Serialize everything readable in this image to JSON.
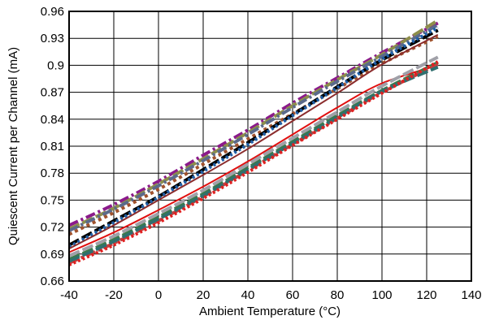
{
  "chart_data": {
    "type": "line",
    "title": "",
    "xlabel": "Ambient Temperature (°C)",
    "ylabel": "Quiescent Current per Channel (mA)",
    "xlim": [
      -40,
      140
    ],
    "ylim": [
      0.66,
      0.96
    ],
    "x_ticks": [
      "-40",
      "-20",
      "0",
      "20",
      "40",
      "60",
      "80",
      "100",
      "120",
      "140"
    ],
    "y_ticks": [
      "0.66",
      "0.69",
      "0.72",
      "0.75",
      "0.78",
      "0.81",
      "0.84",
      "0.87",
      "0.9",
      "0.93",
      "0.96"
    ],
    "grid": true,
    "legend": "none",
    "x": [
      -40,
      -20,
      0,
      20,
      40,
      60,
      80,
      100,
      125
    ],
    "series": [
      {
        "color": "#8b1a8b",
        "dash": "12,4,3,4",
        "values": [
          0.722,
          0.745,
          0.771,
          0.8,
          0.828,
          0.858,
          0.886,
          0.914,
          0.947
        ]
      },
      {
        "color": "#8e8e4a",
        "dash": "14,4",
        "values": [
          0.718,
          0.741,
          0.768,
          0.796,
          0.825,
          0.855,
          0.884,
          0.912,
          0.95
        ]
      },
      {
        "color": "#5a6a8a",
        "dash": "12,4,3,4",
        "values": [
          0.716,
          0.74,
          0.766,
          0.794,
          0.823,
          0.853,
          0.882,
          0.91,
          0.945
        ]
      },
      {
        "color": "#a0522d",
        "dash": "4,4",
        "values": [
          0.712,
          0.736,
          0.762,
          0.79,
          0.818,
          0.846,
          0.874,
          0.902,
          0.932
        ]
      },
      {
        "color": "#000000",
        "dash": "14,4",
        "values": [
          0.7,
          0.727,
          0.754,
          0.784,
          0.814,
          0.845,
          0.876,
          0.906,
          0.939
        ]
      },
      {
        "color": "#1f5fa8",
        "dash": "3,3",
        "values": [
          0.698,
          0.725,
          0.753,
          0.782,
          0.812,
          0.844,
          0.875,
          0.907,
          0.942
        ]
      },
      {
        "color": "#8b2c2c",
        "dash": "",
        "values": [
          0.696,
          0.722,
          0.75,
          0.778,
          0.807,
          0.838,
          0.869,
          0.901,
          0.934
        ]
      },
      {
        "color": "#e01010",
        "dash": "",
        "values": [
          0.692,
          0.714,
          0.739,
          0.765,
          0.793,
          0.823,
          0.853,
          0.88,
          0.9
        ]
      },
      {
        "color": "#3a7a4a",
        "dash": "14,4",
        "values": [
          0.684,
          0.706,
          0.731,
          0.757,
          0.786,
          0.815,
          0.844,
          0.872,
          0.903
        ]
      },
      {
        "color": "#a0a0a8",
        "dash": "14,4",
        "values": [
          0.688,
          0.71,
          0.735,
          0.761,
          0.79,
          0.819,
          0.848,
          0.877,
          0.909
        ]
      },
      {
        "color": "#c04040",
        "dash": "12,4,3,4",
        "values": [
          0.68,
          0.702,
          0.727,
          0.754,
          0.783,
          0.812,
          0.841,
          0.87,
          0.901
        ]
      },
      {
        "color": "#2f6f6f",
        "dash": "14,4",
        "values": [
          0.682,
          0.704,
          0.729,
          0.755,
          0.784,
          0.813,
          0.842,
          0.871,
          0.898
        ]
      },
      {
        "color": "#e02020",
        "dash": "3,3",
        "values": [
          0.678,
          0.7,
          0.725,
          0.752,
          0.781,
          0.811,
          0.84,
          0.869,
          0.904
        ]
      }
    ]
  }
}
